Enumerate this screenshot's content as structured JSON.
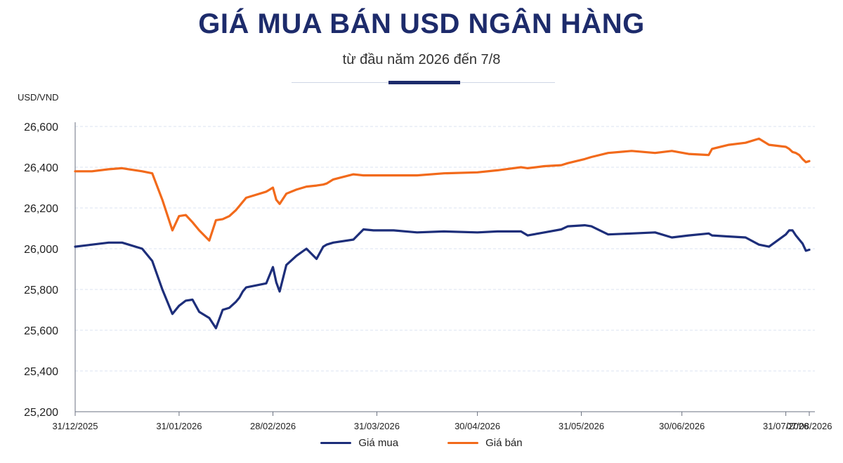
{
  "header": {
    "title": "GIÁ MUA BÁN USD NGÂN HÀNG",
    "subtitle": "từ đầu năm 2026 đến 7/8"
  },
  "colors": {
    "buy": "#1d2e7a",
    "sell": "#f26a1b",
    "grid": "#dbe3f0",
    "axis": "#6b7280"
  },
  "chart_data": {
    "type": "line",
    "title": "GIÁ MUA BÁN USD NGÂN HÀNG",
    "subtitle": "từ đầu năm 2026 đến 7/8",
    "ylabel": "USD/VND",
    "ylim": [
      25200,
      26600
    ],
    "yticks": [
      25200,
      25400,
      25600,
      25800,
      26000,
      26200,
      26400,
      26600
    ],
    "ytick_labels": [
      "25,200",
      "25,400",
      "25,600",
      "25,800",
      "26,000",
      "26,200",
      "26,400",
      "26,600"
    ],
    "xticks": [
      "31/12/2025",
      "31/01/2026",
      "28/02/2026",
      "31/03/2026",
      "30/04/2026",
      "31/05/2026",
      "30/06/2026",
      "31/07/2026",
      "07/08/2026"
    ],
    "grid": true,
    "legend_position": "bottom",
    "series": [
      {
        "name": "Giá mua",
        "x": [
          "2025-12-31",
          "2026-01-05",
          "2026-01-10",
          "2026-01-14",
          "2026-01-16",
          "2026-01-20",
          "2026-01-23",
          "2026-01-26",
          "2026-01-29",
          "2026-01-31",
          "2026-02-02",
          "2026-02-04",
          "2026-02-06",
          "2026-02-09",
          "2026-02-11",
          "2026-02-13",
          "2026-02-15",
          "2026-02-17",
          "2026-02-18",
          "2026-02-19",
          "2026-02-20",
          "2026-02-26",
          "2026-02-28",
          "2026-03-01",
          "2026-03-02",
          "2026-03-04",
          "2026-03-07",
          "2026-03-10",
          "2026-03-13",
          "2026-03-15",
          "2026-03-16",
          "2026-03-18",
          "2026-03-24",
          "2026-03-27",
          "2026-03-30",
          "2026-04-05",
          "2026-04-12",
          "2026-04-20",
          "2026-04-30",
          "2026-05-06",
          "2026-05-13",
          "2026-05-15",
          "2026-05-20",
          "2026-05-25",
          "2026-05-27",
          "2026-06-01",
          "2026-06-03",
          "2026-06-08",
          "2026-06-15",
          "2026-06-22",
          "2026-06-27",
          "2026-07-02",
          "2026-07-08",
          "2026-07-09",
          "2026-07-14",
          "2026-07-19",
          "2026-07-23",
          "2026-07-26",
          "2026-07-31",
          "2026-08-01",
          "2026-08-02",
          "2026-08-03",
          "2026-08-04",
          "2026-08-05",
          "2026-08-06",
          "2026-08-07"
        ],
        "values": [
          26010,
          26020,
          26030,
          26030,
          26020,
          26000,
          25940,
          25800,
          25680,
          25720,
          25745,
          25750,
          25690,
          25660,
          25610,
          25700,
          25710,
          25740,
          25760,
          25790,
          25810,
          25830,
          25910,
          25835,
          25790,
          25920,
          25965,
          26000,
          25950,
          26010,
          26020,
          26030,
          26045,
          26095,
          26090,
          26090,
          26080,
          26085,
          26080,
          26085,
          26085,
          26065,
          26080,
          26095,
          26110,
          26115,
          26110,
          26070,
          26075,
          26080,
          26055,
          26065,
          26075,
          26065,
          26060,
          26055,
          26020,
          26010,
          26070,
          26090,
          26090,
          26065,
          26045,
          26025,
          25990,
          25995
        ]
      },
      {
        "name": "Giá bán",
        "x": [
          "2025-12-31",
          "2026-01-05",
          "2026-01-10",
          "2026-01-14",
          "2026-01-16",
          "2026-01-20",
          "2026-01-23",
          "2026-01-26",
          "2026-01-29",
          "2026-01-31",
          "2026-02-02",
          "2026-02-04",
          "2026-02-06",
          "2026-02-09",
          "2026-02-11",
          "2026-02-13",
          "2026-02-15",
          "2026-02-17",
          "2026-02-18",
          "2026-02-19",
          "2026-02-20",
          "2026-02-26",
          "2026-02-28",
          "2026-03-01",
          "2026-03-02",
          "2026-03-04",
          "2026-03-07",
          "2026-03-10",
          "2026-03-13",
          "2026-03-15",
          "2026-03-16",
          "2026-03-18",
          "2026-03-24",
          "2026-03-27",
          "2026-03-30",
          "2026-04-05",
          "2026-04-12",
          "2026-04-20",
          "2026-04-30",
          "2026-05-06",
          "2026-05-13",
          "2026-05-15",
          "2026-05-20",
          "2026-05-25",
          "2026-05-27",
          "2026-06-01",
          "2026-06-03",
          "2026-06-08",
          "2026-06-15",
          "2026-06-22",
          "2026-06-27",
          "2026-07-02",
          "2026-07-08",
          "2026-07-09",
          "2026-07-14",
          "2026-07-19",
          "2026-07-23",
          "2026-07-26",
          "2026-07-31",
          "2026-08-01",
          "2026-08-02",
          "2026-08-03",
          "2026-08-04",
          "2026-08-05",
          "2026-08-06",
          "2026-08-07"
        ],
        "values": [
          26380,
          26380,
          26390,
          26395,
          26390,
          26380,
          26370,
          26240,
          26090,
          26160,
          26165,
          26130,
          26090,
          26040,
          26140,
          26145,
          26160,
          26190,
          26210,
          26230,
          26250,
          26280,
          26300,
          26240,
          26220,
          26270,
          26290,
          26305,
          26310,
          26315,
          26320,
          26340,
          26365,
          26360,
          26360,
          26360,
          26360,
          26370,
          26375,
          26385,
          26400,
          26395,
          26405,
          26410,
          26420,
          26440,
          26450,
          26470,
          26480,
          26470,
          26480,
          26465,
          26460,
          26490,
          26510,
          26520,
          26540,
          26510,
          26500,
          26490,
          26475,
          26470,
          26460,
          26440,
          26425,
          26430
        ]
      }
    ]
  },
  "legend": {
    "buy_label": "Giá mua",
    "sell_label": "Giá bán"
  }
}
